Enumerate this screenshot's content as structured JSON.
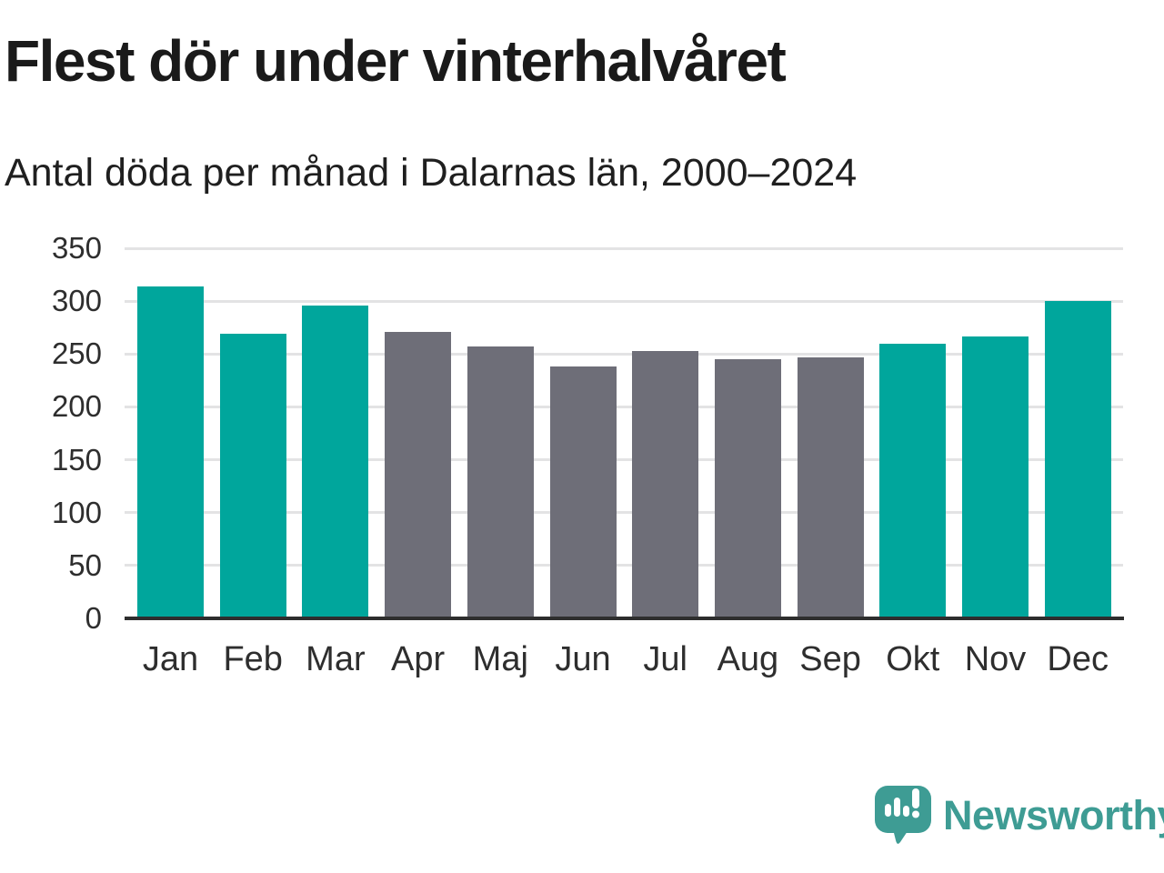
{
  "header": {
    "title": "Flest dör under vinterhalvåret",
    "subtitle": "Antal döda per månad i Dalarnas län, 2000–2024"
  },
  "footer": {
    "brand": "Newsworthy",
    "brand_color": "#3e9c94",
    "logo_icon": "speech-bubble-bar-chart-exclamation-icon"
  },
  "chart_data": {
    "type": "bar",
    "title": "Flest dör under vinterhalvåret",
    "subtitle": "Antal döda per månad i Dalarnas län, 2000–2024",
    "categories": [
      "Jan",
      "Feb",
      "Mar",
      "Apr",
      "Maj",
      "Jun",
      "Jul",
      "Aug",
      "Sep",
      "Okt",
      "Nov",
      "Dec"
    ],
    "values": [
      314,
      269,
      296,
      271,
      257,
      238,
      253,
      245,
      247,
      260,
      267,
      300
    ],
    "highlighted_months": [
      "Jan",
      "Feb",
      "Mar",
      "Okt",
      "Nov",
      "Dec"
    ],
    "highlight_color": "#00a69c",
    "base_color": "#6e6e78",
    "xlabel": "",
    "ylabel": "",
    "ylim": [
      0,
      350
    ],
    "yticks": [
      0,
      50,
      100,
      150,
      200,
      250,
      300,
      350
    ],
    "grid": "horizontal",
    "gridline_color": "#e3e3e4",
    "axis_color": "#2e2e2e",
    "legend": "none"
  }
}
